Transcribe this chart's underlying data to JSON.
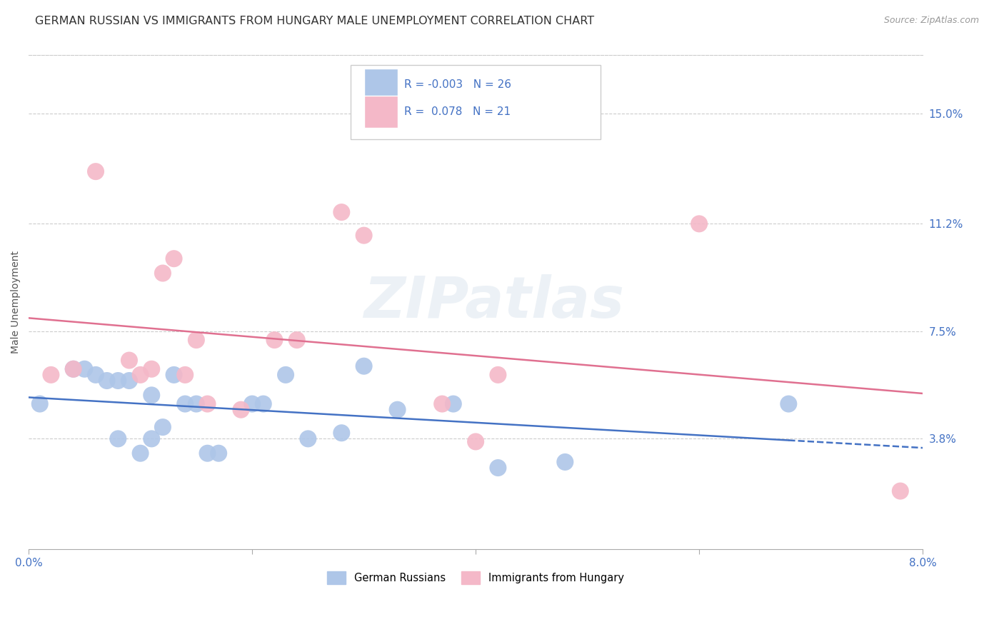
{
  "title": "GERMAN RUSSIAN VS IMMIGRANTS FROM HUNGARY MALE UNEMPLOYMENT CORRELATION CHART",
  "source": "Source: ZipAtlas.com",
  "ylabel": "Male Unemployment",
  "y_tick_values": [
    0.15,
    0.112,
    0.075,
    0.038
  ],
  "y_tick_labels": [
    "15.0%",
    "11.2%",
    "7.5%",
    "3.8%"
  ],
  "x_range": [
    0.0,
    0.08
  ],
  "y_range": [
    0.0,
    0.17
  ],
  "watermark": "ZIPatlas",
  "series1_label": "German Russians",
  "series2_label": "Immigrants from Hungary",
  "series1_color": "#aec6e8",
  "series2_color": "#f4b8c8",
  "blue_line_color": "#4472c4",
  "pink_line_color": "#e07090",
  "series1_x": [
    0.001,
    0.004,
    0.005,
    0.006,
    0.007,
    0.008,
    0.008,
    0.009,
    0.01,
    0.011,
    0.011,
    0.012,
    0.013,
    0.014,
    0.015,
    0.016,
    0.017,
    0.02,
    0.021,
    0.023,
    0.025,
    0.028,
    0.03,
    0.033,
    0.038,
    0.042,
    0.048,
    0.068
  ],
  "series1_y": [
    0.05,
    0.062,
    0.062,
    0.06,
    0.058,
    0.058,
    0.038,
    0.058,
    0.033,
    0.038,
    0.053,
    0.042,
    0.06,
    0.05,
    0.05,
    0.033,
    0.033,
    0.05,
    0.05,
    0.06,
    0.038,
    0.04,
    0.063,
    0.048,
    0.05,
    0.028,
    0.03,
    0.05
  ],
  "series2_x": [
    0.002,
    0.004,
    0.006,
    0.009,
    0.01,
    0.011,
    0.012,
    0.013,
    0.014,
    0.015,
    0.016,
    0.019,
    0.022,
    0.024,
    0.028,
    0.03,
    0.037,
    0.04,
    0.042,
    0.06,
    0.078
  ],
  "series2_y": [
    0.06,
    0.062,
    0.13,
    0.065,
    0.06,
    0.062,
    0.095,
    0.1,
    0.06,
    0.072,
    0.05,
    0.048,
    0.072,
    0.072,
    0.116,
    0.108,
    0.05,
    0.037,
    0.06,
    0.112,
    0.02
  ],
  "title_fontsize": 11.5,
  "axis_label_fontsize": 10,
  "tick_fontsize": 11,
  "source_fontsize": 9
}
